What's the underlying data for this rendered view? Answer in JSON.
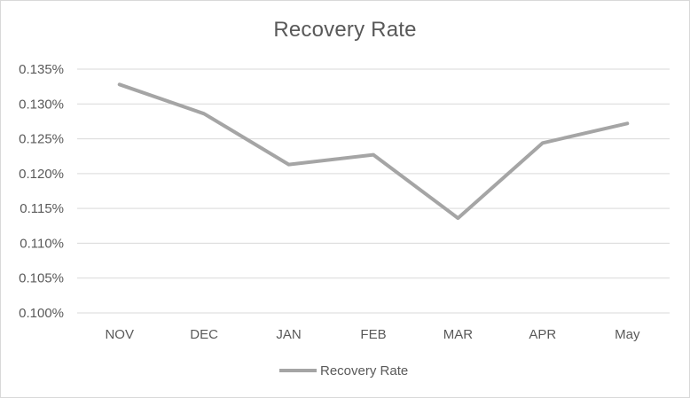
{
  "chart_data": {
    "type": "line",
    "title": "Recovery Rate",
    "categories": [
      "NOV",
      "DEC",
      "JAN",
      "FEB",
      "MAR",
      "APR",
      "May"
    ],
    "series": [
      {
        "name": "Recovery Rate",
        "values": [
          0.1328,
          0.1286,
          0.1213,
          0.1227,
          0.1136,
          0.1244,
          0.1272
        ],
        "color": "#a5a5a5"
      }
    ],
    "ylim": [
      0.1,
      0.135
    ],
    "y_ticks": [
      "0.100%",
      "0.105%",
      "0.110%",
      "0.115%",
      "0.120%",
      "0.125%",
      "0.130%",
      "0.135%"
    ],
    "grid": true,
    "legend_position": "bottom"
  }
}
